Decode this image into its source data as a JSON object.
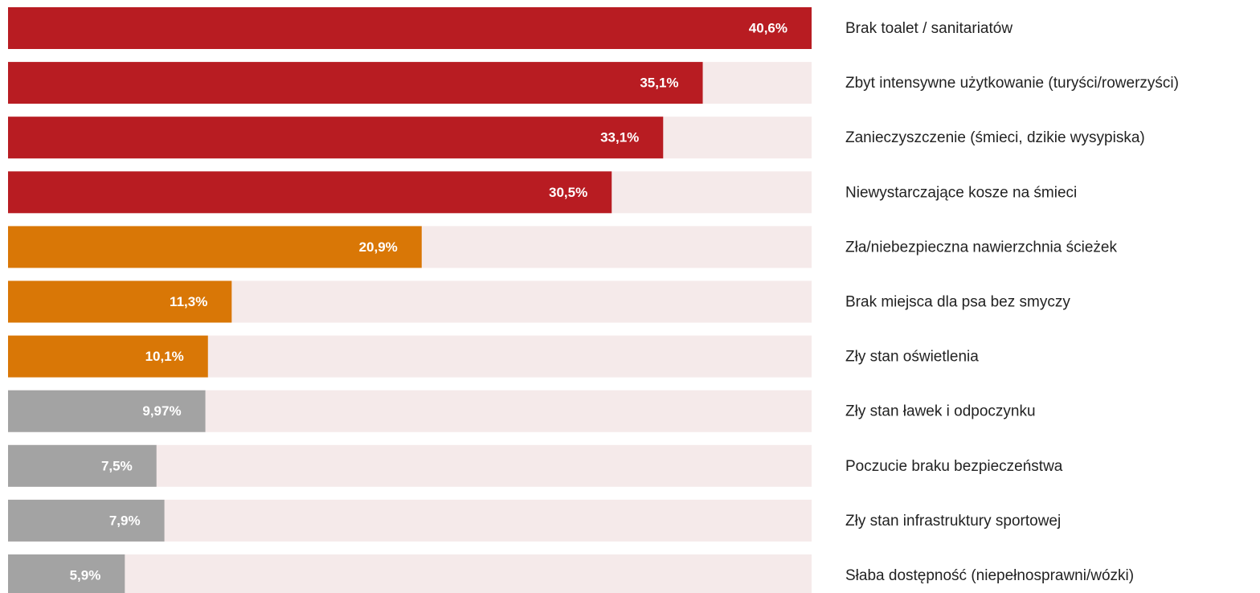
{
  "chart_data": {
    "type": "bar",
    "orientation": "horizontal",
    "categories": [
      "Brak toalet / sanitariatów",
      "Zbyt intensywne użytkowanie (turyści/rowerzyści)",
      "Zanieczyszczenie (śmieci, dzikie wysypiska)",
      "Niewystarczające kosze na śmieci",
      "Zła/niebezpieczna nawierzchnia ścieżek",
      "Brak miejsca dla psa bez smyczy",
      "Zły stan oświetlenia",
      "Zły stan ławek i odpoczynku",
      "Poczucie braku bezpieczeństwa",
      "Zły stan infrastruktury sportowej",
      "Słaba dostępność (niepełnosprawni/wózki)"
    ],
    "values": [
      40.6,
      35.1,
      33.1,
      30.5,
      20.9,
      11.3,
      10.1,
      9.97,
      7.5,
      7.9,
      5.9
    ],
    "value_labels": [
      "40,6%",
      "35,1%",
      "33,1%",
      "30,5%",
      "20,9%",
      "11,3%",
      "10,1%",
      "9,97%",
      "7,5%",
      "7,9%",
      "5,9%"
    ],
    "colors": [
      "#b81c22",
      "#b81c22",
      "#b81c22",
      "#b81c22",
      "#d97706",
      "#d97706",
      "#d97706",
      "#a3a3a3",
      "#a3a3a3",
      "#a3a3a3",
      "#a3a3a3"
    ],
    "xlim": [
      0,
      40.6
    ]
  }
}
